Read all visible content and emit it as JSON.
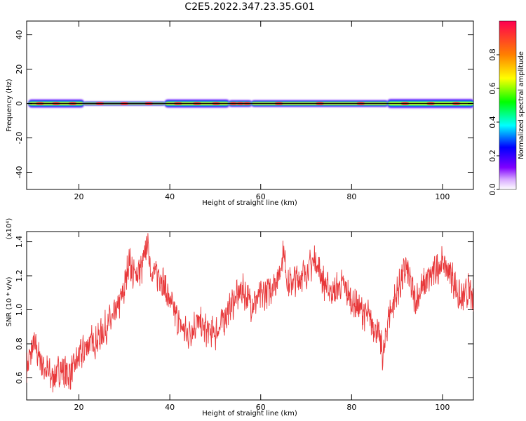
{
  "title": "C2E5.2022.347.23.35.G01",
  "chart_data": [
    {
      "type": "heatmap",
      "xlabel": "Height of straight line (km)",
      "ylabel": "Frequency (Hz)",
      "xlim": [
        8.5,
        106.8
      ],
      "ylim": [
        -50,
        48
      ],
      "xticks": [
        20,
        40,
        60,
        80,
        100
      ],
      "yticks": [
        40,
        20,
        0,
        -20,
        -40
      ],
      "colorbar": {
        "label": "Normalized spectral amplitude",
        "range": [
          0.0,
          1.0
        ],
        "ticks": [
          "0.0",
          "0.2",
          "0.4",
          "0.6",
          "0.8"
        ],
        "colormap": [
          "#ffffff",
          "#7f00ff",
          "#0000ff",
          "#00ffff",
          "#00ff00",
          "#ffff00",
          "#ff8000",
          "#ff0000"
        ]
      },
      "segments": [
        {
          "x0": 9,
          "x1": 21,
          "halfwidth_hz": 2.5,
          "peak": 0.95
        },
        {
          "x0": 21,
          "x1": 39,
          "halfwidth_hz": 1.0,
          "peak": 1.0
        },
        {
          "x0": 39,
          "x1": 53,
          "halfwidth_hz": 2.5,
          "peak": 0.9
        },
        {
          "x0": 53,
          "x1": 58,
          "halfwidth_hz": 2.0,
          "peak": 0.6
        },
        {
          "x0": 58,
          "x1": 88,
          "halfwidth_hz": 2.0,
          "peak": 0.95
        },
        {
          "x0": 88,
          "x1": 106.8,
          "halfwidth_hz": 2.8,
          "peak": 0.85
        }
      ]
    },
    {
      "type": "line",
      "xlabel": "Height of straight line (km)",
      "ylabel": "SNR (10 * v/v)",
      "y_multiplier": "(x10⁴)",
      "xlim": [
        8.5,
        106.8
      ],
      "ylim": [
        0.47,
        1.46
      ],
      "xticks": [
        20,
        40,
        60,
        80,
        100
      ],
      "yticks": [
        "0.6",
        "0.8",
        "1.0",
        "1.2",
        "1.4"
      ],
      "color": "#e8383a",
      "series": [
        {
          "x": [
            8.5,
            10,
            12,
            14,
            16,
            18,
            20,
            22,
            24,
            26,
            28,
            30,
            31,
            32,
            34,
            35,
            36,
            38,
            40,
            42,
            44,
            46,
            48,
            50,
            52,
            54,
            56,
            58,
            60,
            62,
            64,
            65,
            66,
            68,
            70,
            72,
            74,
            76,
            78,
            80,
            82,
            84,
            86,
            87,
            88,
            90,
            92,
            94,
            96,
            98,
            100,
            102,
            104,
            106,
            106.8
          ],
          "y": [
            0.65,
            0.8,
            0.68,
            0.6,
            0.65,
            0.62,
            0.72,
            0.8,
            0.82,
            0.9,
            0.97,
            1.12,
            1.3,
            1.2,
            1.25,
            1.4,
            1.22,
            1.2,
            1.05,
            0.92,
            0.85,
            0.93,
            0.88,
            0.86,
            0.95,
            1.05,
            1.12,
            1.03,
            1.08,
            1.12,
            1.2,
            1.35,
            1.15,
            1.18,
            1.22,
            1.3,
            1.15,
            1.1,
            1.15,
            1.05,
            1.0,
            0.95,
            0.85,
            0.72,
            0.95,
            1.1,
            1.25,
            1.05,
            1.15,
            1.22,
            1.28,
            1.2,
            1.05,
            1.12,
            1.0
          ]
        }
      ]
    }
  ]
}
